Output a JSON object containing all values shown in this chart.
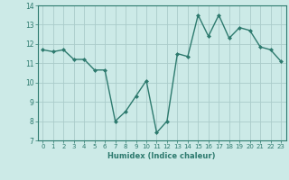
{
  "x": [
    0,
    1,
    2,
    3,
    4,
    5,
    6,
    7,
    8,
    9,
    10,
    11,
    12,
    13,
    14,
    15,
    16,
    17,
    18,
    19,
    20,
    21,
    22,
    23
  ],
  "y": [
    11.7,
    11.6,
    11.7,
    11.2,
    11.2,
    10.65,
    10.65,
    8.0,
    8.5,
    9.3,
    10.1,
    7.4,
    8.0,
    11.5,
    11.35,
    13.5,
    12.4,
    13.5,
    12.3,
    12.85,
    12.7,
    11.85,
    11.7,
    11.1
  ],
  "xlim": [
    -0.5,
    23.5
  ],
  "ylim": [
    7,
    14
  ],
  "xticks": [
    0,
    1,
    2,
    3,
    4,
    5,
    6,
    7,
    8,
    9,
    10,
    11,
    12,
    13,
    14,
    15,
    16,
    17,
    18,
    19,
    20,
    21,
    22,
    23
  ],
  "yticks": [
    7,
    8,
    9,
    10,
    11,
    12,
    13,
    14
  ],
  "xlabel": "Humidex (Indice chaleur)",
  "line_color": "#2d7a6e",
  "bg_color": "#cceae7",
  "grid_color": "#aaccca",
  "spine_color": "#2d7a6e"
}
